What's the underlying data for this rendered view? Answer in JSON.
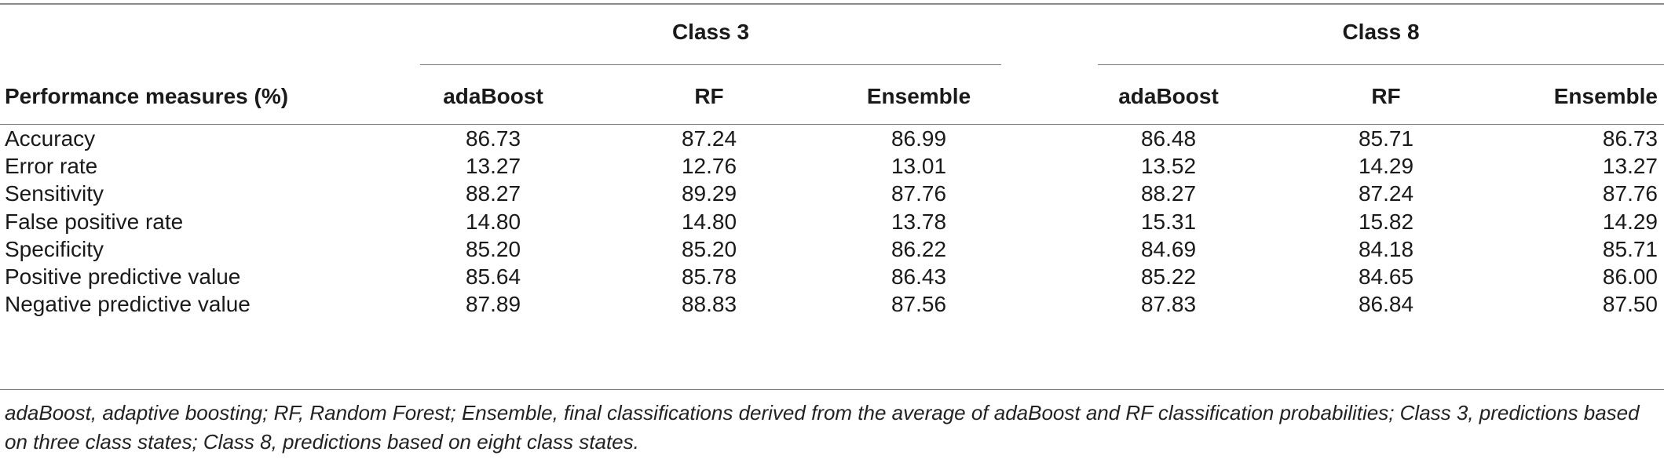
{
  "table": {
    "groups": [
      "Class 3",
      "Class 8"
    ],
    "row_header": "Performance measures (%)",
    "columns": [
      "adaBoost",
      "RF",
      "Ensemble",
      "adaBoost",
      "RF",
      "Ensemble"
    ],
    "rows": [
      {
        "label": "Accuracy",
        "values": [
          "86.73",
          "87.24",
          "86.99",
          "86.48",
          "85.71",
          "86.73"
        ]
      },
      {
        "label": "Error rate",
        "values": [
          "13.27",
          "12.76",
          "13.01",
          "13.52",
          "14.29",
          "13.27"
        ]
      },
      {
        "label": "Sensitivity",
        "values": [
          "88.27",
          "89.29",
          "87.76",
          "88.27",
          "87.24",
          "87.76"
        ]
      },
      {
        "label": "False positive rate",
        "values": [
          "14.80",
          "14.80",
          "13.78",
          "15.31",
          "15.82",
          "14.29"
        ]
      },
      {
        "label": "Specificity",
        "values": [
          "85.20",
          "85.20",
          "86.22",
          "84.69",
          "84.18",
          "85.71"
        ]
      },
      {
        "label": "Positive predictive value",
        "values": [
          "85.64",
          "85.78",
          "86.43",
          "85.22",
          "84.65",
          "86.00"
        ]
      },
      {
        "label": "Negative predictive value",
        "values": [
          "87.89",
          "88.83",
          "87.56",
          "87.83",
          "86.84",
          "87.50"
        ]
      }
    ],
    "footnote": "adaBoost, adaptive boosting; RF, Random Forest; Ensemble, final classifications derived from the average of adaBoost and RF classification probabilities; Class 3, predictions based on three class states; Class 8, predictions based on eight class states."
  }
}
